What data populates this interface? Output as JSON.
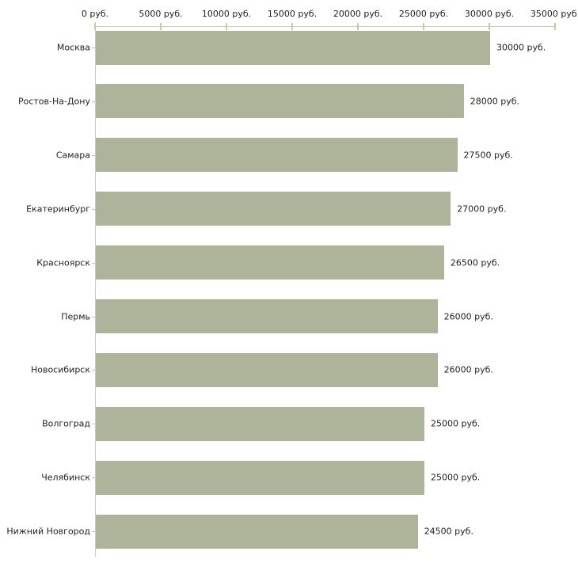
{
  "chart_data": {
    "type": "bar",
    "orientation": "horizontal",
    "title": "",
    "xlabel": "",
    "ylabel": "",
    "unit": "руб.",
    "categories": [
      "Москва",
      "Ростов-На-Дону",
      "Самара",
      "Екатеринбург",
      "Красноярск",
      "Пермь",
      "Новосибирск",
      "Волгоград",
      "Челябинск",
      "Нижний Новгород"
    ],
    "values": [
      30000,
      28000,
      27500,
      27000,
      26500,
      26000,
      26000,
      25000,
      25000,
      24500
    ],
    "value_labels": [
      "30000 руб.",
      "28000 руб.",
      "27500 руб.",
      "27000 руб.",
      "26500 руб.",
      "26000 руб.",
      "26000 руб.",
      "25000 руб.",
      "25000 руб.",
      "24500 руб."
    ],
    "x_axis": {
      "position": "top",
      "min": 0,
      "max": 35000,
      "tick_values": [
        0,
        5000,
        10000,
        15000,
        20000,
        25000,
        30000,
        35000
      ],
      "tick_labels": [
        "0 руб.",
        "5000 руб.",
        "10000 руб.",
        "15000 руб.",
        "20000 руб.",
        "25000 руб.",
        "30000 руб.",
        "35000 руб."
      ]
    },
    "grid": false,
    "legend": false,
    "colors": {
      "bar": "#aeb49a",
      "axis_line": "#c9c9c9",
      "x_tick": "#cccc99",
      "y_tick": "#c0c0c0",
      "text": "#222222",
      "background": "#ffffff"
    }
  }
}
